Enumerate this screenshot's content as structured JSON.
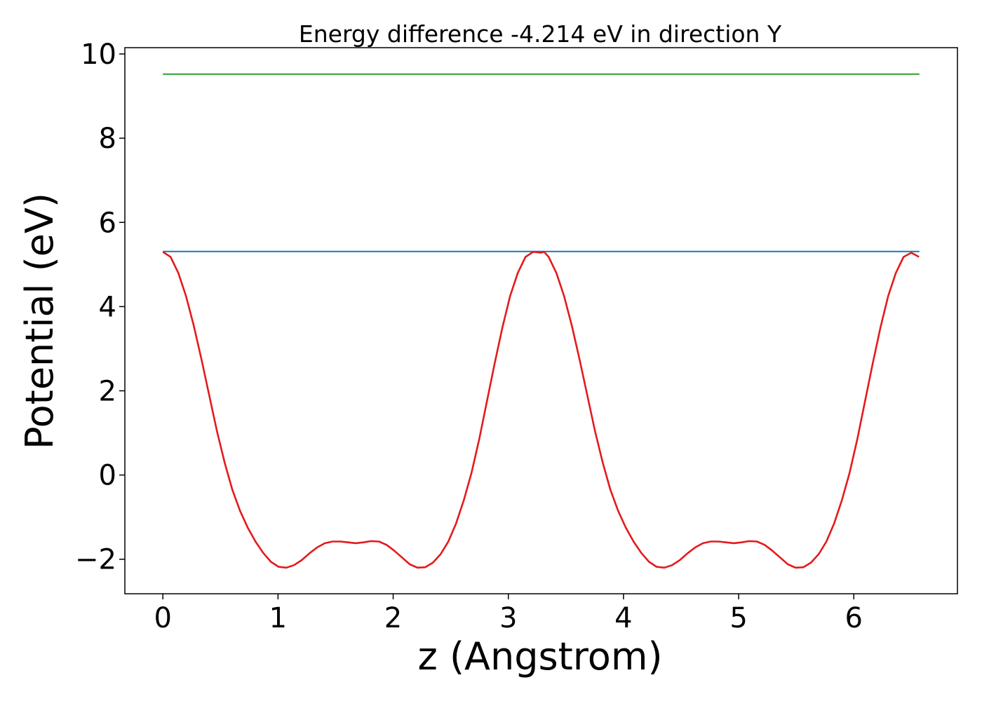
{
  "chart_data": {
    "type": "line",
    "title": "Energy difference -4.214 eV in direction Y",
    "xlabel": "z (Angstrom)",
    "ylabel": "Potential (eV)",
    "xlim": [
      -0.33,
      6.9
    ],
    "ylim": [
      -2.82,
      10.15
    ],
    "xticks": [
      "0",
      "1",
      "2",
      "3",
      "4",
      "5",
      "6"
    ],
    "yticks": [
      "−2",
      "0",
      "2",
      "4",
      "6",
      "8",
      "10"
    ],
    "grid": false,
    "series": [
      {
        "color": "#2ca02c",
        "x": [
          0.0,
          6.57
        ],
        "y": [
          9.52,
          9.52
        ]
      },
      {
        "color": "#1f77b4",
        "x": [
          0.0,
          6.57
        ],
        "y": [
          5.31,
          5.31
        ]
      },
      {
        "color": "#e41a1c",
        "x": [
          0.0,
          0.067,
          0.134,
          0.201,
          0.268,
          0.335,
          0.402,
          0.469,
          0.536,
          0.603,
          0.67,
          0.737,
          0.804,
          0.871,
          0.938,
          1.005,
          1.072,
          1.139,
          1.206,
          1.273,
          1.34,
          1.407,
          1.474,
          1.541,
          1.608,
          1.675,
          1.742,
          1.809,
          1.876,
          1.943,
          2.01,
          2.077,
          2.144,
          2.211,
          2.278,
          2.345,
          2.412,
          2.479,
          2.546,
          2.613,
          2.68,
          2.747,
          2.814,
          2.881,
          2.948,
          3.015,
          3.082,
          3.149,
          3.216,
          3.283,
          3.31,
          3.35,
          3.417,
          3.484,
          3.551,
          3.618,
          3.685,
          3.752,
          3.819,
          3.886,
          3.953,
          4.02,
          4.087,
          4.154,
          4.221,
          4.288,
          4.355,
          4.422,
          4.489,
          4.556,
          4.623,
          4.69,
          4.757,
          4.824,
          4.891,
          4.958,
          5.025,
          5.092,
          5.159,
          5.226,
          5.293,
          5.36,
          5.427,
          5.494,
          5.561,
          5.628,
          5.695,
          5.762,
          5.829,
          5.896,
          5.963,
          6.03,
          6.097,
          6.164,
          6.231,
          6.298,
          6.365,
          6.432,
          6.499,
          6.566
        ],
        "y": [
          5.3,
          5.18,
          4.8,
          4.25,
          3.55,
          2.75,
          1.9,
          1.05,
          0.3,
          -0.35,
          -0.85,
          -1.25,
          -1.58,
          -1.85,
          -2.06,
          -2.18,
          -2.2,
          -2.14,
          -2.02,
          -1.86,
          -1.72,
          -1.62,
          -1.58,
          -1.58,
          -1.6,
          -1.62,
          -1.6,
          -1.57,
          -1.58,
          -1.66,
          -1.8,
          -1.96,
          -2.12,
          -2.2,
          -2.19,
          -2.08,
          -1.88,
          -1.58,
          -1.15,
          -0.6,
          0.05,
          0.85,
          1.75,
          2.65,
          3.5,
          4.25,
          4.8,
          5.18,
          5.3,
          5.28,
          5.3,
          5.18,
          4.8,
          4.25,
          3.55,
          2.75,
          1.9,
          1.05,
          0.3,
          -0.35,
          -0.85,
          -1.25,
          -1.58,
          -1.85,
          -2.06,
          -2.18,
          -2.2,
          -2.14,
          -2.02,
          -1.86,
          -1.72,
          -1.62,
          -1.58,
          -1.58,
          -1.6,
          -1.62,
          -1.6,
          -1.57,
          -1.58,
          -1.66,
          -1.8,
          -1.96,
          -2.12,
          -2.2,
          -2.19,
          -2.08,
          -1.88,
          -1.58,
          -1.15,
          -0.6,
          0.05,
          0.85,
          1.75,
          2.65,
          3.5,
          4.25,
          4.8,
          5.18,
          5.28,
          5.18
        ]
      }
    ]
  }
}
